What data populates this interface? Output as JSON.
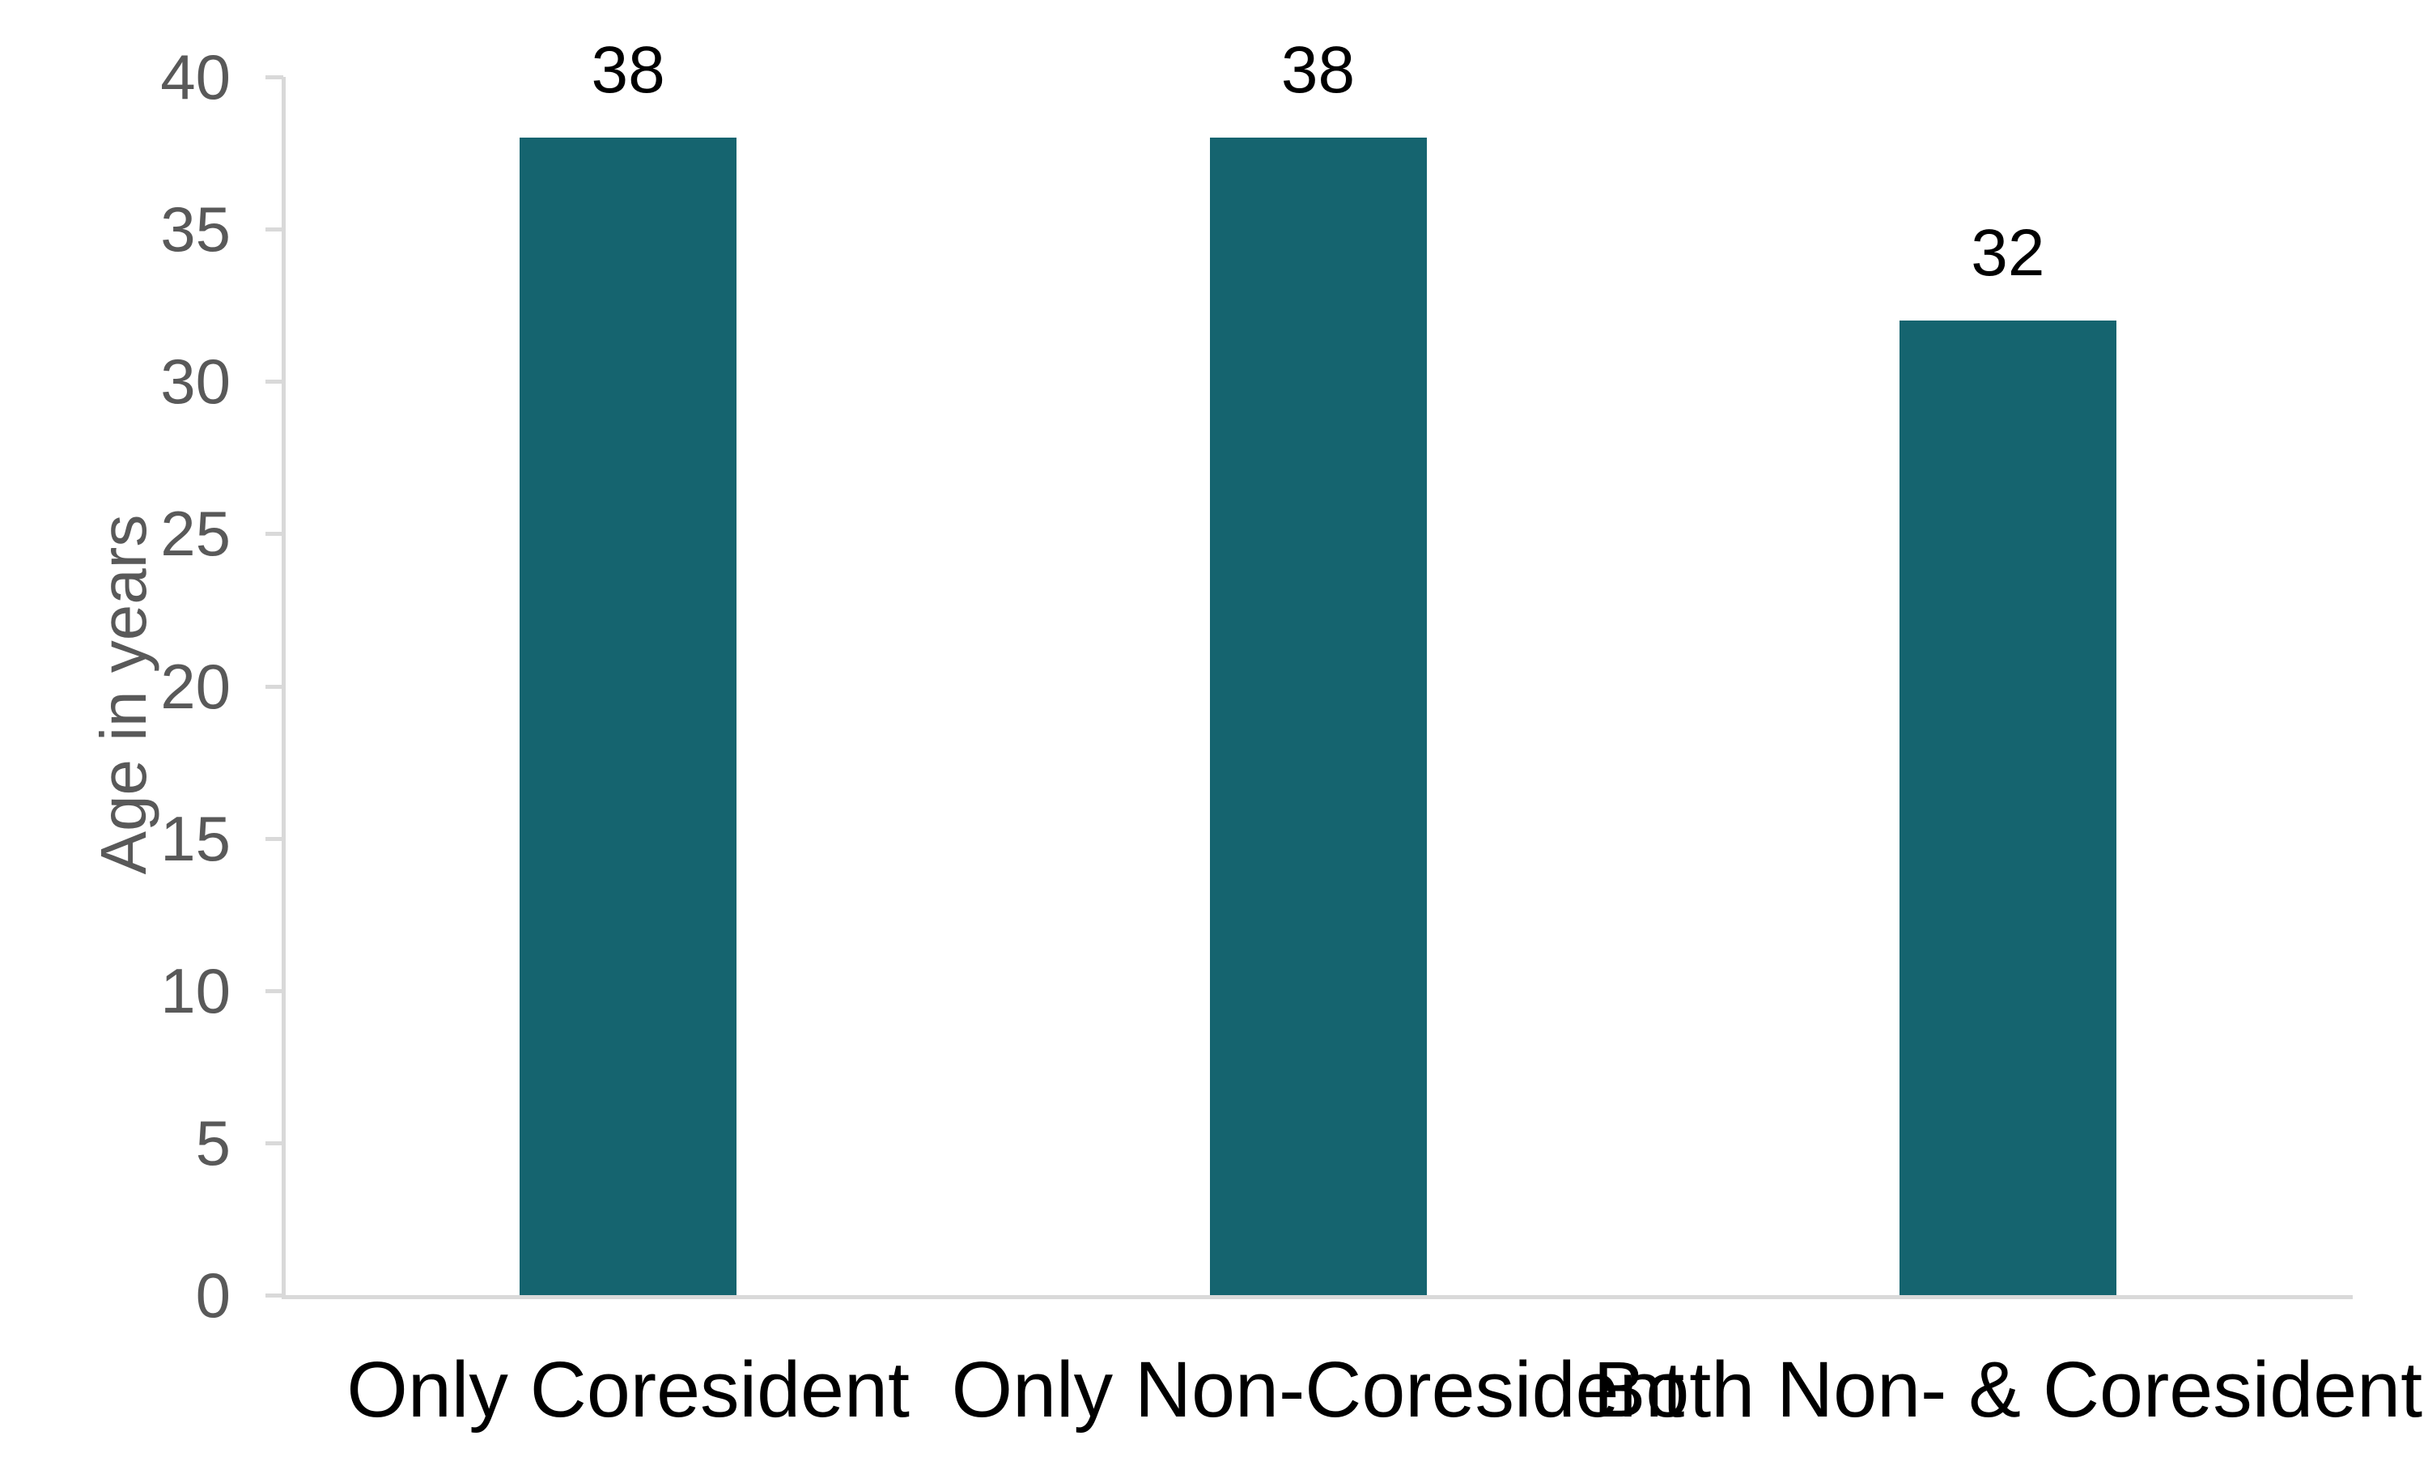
{
  "chart_data": {
    "type": "bar",
    "categories": [
      "Only Coresident",
      "Only Non-Coresident",
      "Both Non- & Coresident"
    ],
    "values": [
      38,
      38,
      32
    ],
    "data_labels": [
      "38",
      "38",
      "32"
    ],
    "title": "",
    "xlabel": "",
    "ylabel": "Age in years",
    "ylim": [
      0,
      40
    ],
    "ytick_step": 5,
    "ytick_labels": [
      "40",
      "35",
      "30",
      "25",
      "20",
      "15",
      "10",
      "5",
      "0"
    ],
    "grid": false,
    "legend": "none"
  },
  "colors": {
    "bar": "#15646f",
    "axis_line": "#d9d9d9",
    "tick_label": "#595959",
    "text_label": "#000000"
  }
}
